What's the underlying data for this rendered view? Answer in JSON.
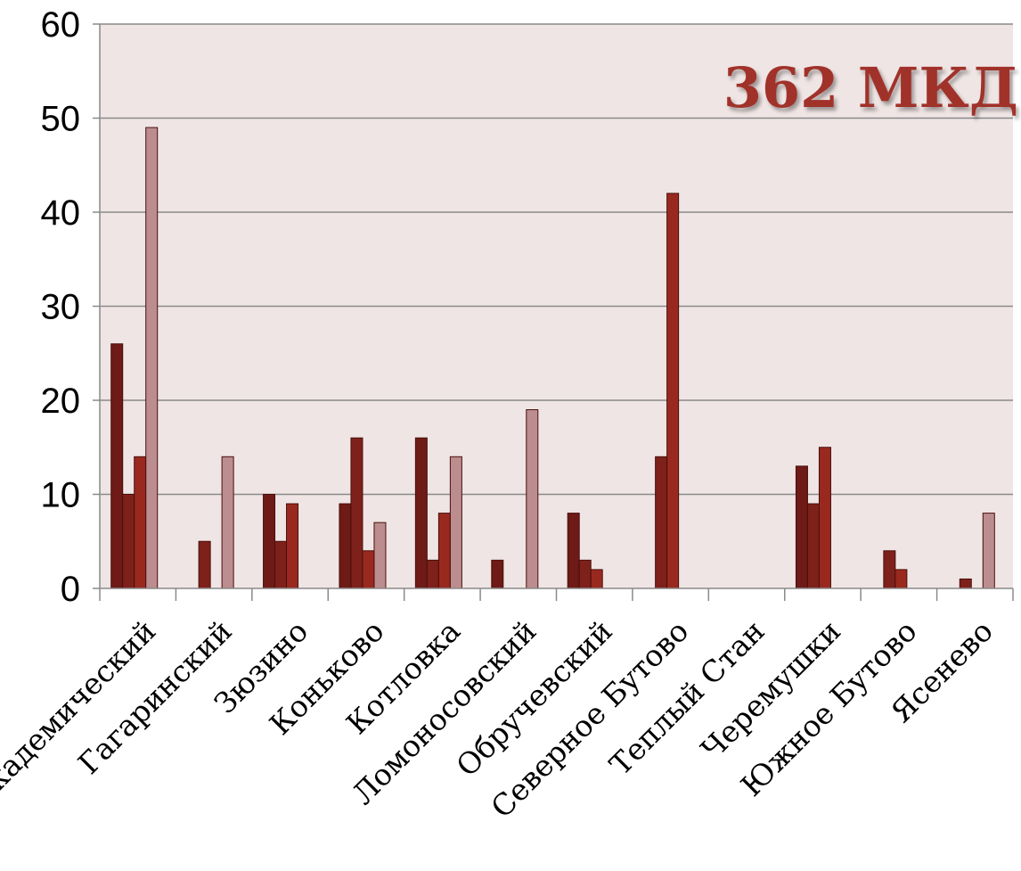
{
  "chart_data": {
    "type": "bar",
    "title": "",
    "xlabel": "",
    "ylabel": "",
    "ylim": [
      0,
      60
    ],
    "yticks": [
      0,
      10,
      20,
      30,
      40,
      50,
      60
    ],
    "grid": true,
    "legend": "none",
    "annotation": "362 МКД",
    "categories": [
      "Академический",
      "Гагаринский",
      "Зюзино",
      "Коньково",
      "Котловка",
      "Ломоносовский",
      "Обручевский",
      "Северное Бутово",
      "Теплый Стан",
      "Черемушки",
      "Южное Бутово",
      "Ясенево"
    ],
    "series": [
      {
        "color": "#6e1a16",
        "values": [
          26,
          0,
          10,
          9,
          16,
          3,
          8,
          0,
          0,
          13,
          0,
          0
        ]
      },
      {
        "color": "#7e211b",
        "values": [
          10,
          5,
          5,
          16,
          3,
          0,
          3,
          14,
          0,
          9,
          4,
          1
        ]
      },
      {
        "color": "#99291f",
        "values": [
          14,
          0,
          9,
          4,
          8,
          0,
          2,
          42,
          0,
          15,
          2,
          0
        ]
      },
      {
        "color": "#bc8d8e",
        "values": [
          49,
          14,
          0,
          7,
          14,
          19,
          0,
          0,
          0,
          0,
          0,
          8
        ]
      }
    ],
    "colors": {
      "plot_background": "#efe5e4",
      "gridline": "#8a8a8a",
      "annotation": "#a0332a"
    }
  }
}
